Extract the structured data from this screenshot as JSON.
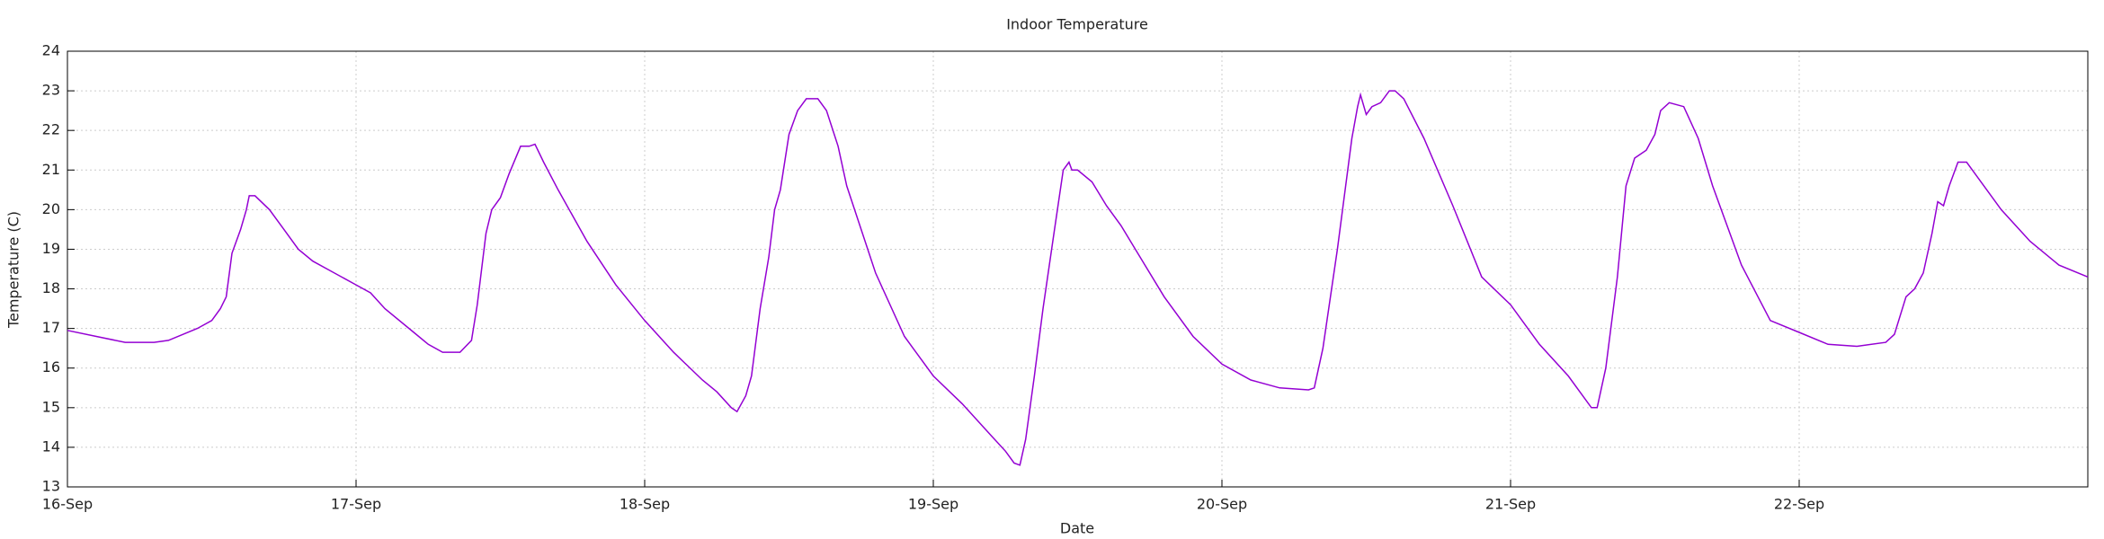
{
  "chart_data": {
    "type": "line",
    "title": "Indoor Temperature",
    "x_label": "Date",
    "y_label": "Temperature (C)",
    "x": [
      0,
      0.1,
      0.2,
      0.3,
      0.35,
      0.45,
      0.5,
      0.53,
      0.55,
      0.57,
      0.6,
      0.62,
      0.63,
      0.65,
      0.7,
      0.75,
      0.8,
      0.85,
      0.9,
      1,
      1.05,
      1.1,
      1.2,
      1.25,
      1.3,
      1.36,
      1.4,
      1.42,
      1.45,
      1.47,
      1.5,
      1.53,
      1.57,
      1.6,
      1.62,
      1.65,
      1.7,
      1.8,
      1.9,
      2,
      2.1,
      2.2,
      2.25,
      2.3,
      2.32,
      2.35,
      2.37,
      2.4,
      2.43,
      2.45,
      2.47,
      2.5,
      2.53,
      2.56,
      2.6,
      2.63,
      2.67,
      2.7,
      2.8,
      2.9,
      3,
      3.1,
      3.2,
      3.25,
      3.28,
      3.3,
      3.32,
      3.35,
      3.38,
      3.42,
      3.45,
      3.47,
      3.48,
      3.5,
      3.55,
      3.6,
      3.65,
      3.7,
      3.8,
      3.9,
      4,
      4.1,
      4.2,
      4.3,
      4.32,
      4.35,
      4.4,
      4.45,
      4.47,
      4.48,
      4.5,
      4.52,
      4.55,
      4.58,
      4.6,
      4.63,
      4.7,
      4.8,
      4.9,
      5,
      5.1,
      5.2,
      5.28,
      5.3,
      5.33,
      5.37,
      5.4,
      5.43,
      5.47,
      5.5,
      5.52,
      5.55,
      5.6,
      5.65,
      5.7,
      5.8,
      5.9,
      6,
      6.1,
      6.2,
      6.3,
      6.33,
      6.37,
      6.4,
      6.43,
      6.46,
      6.48,
      6.5,
      6.52,
      6.55,
      6.58,
      6.6,
      6.7,
      6.8,
      6.9,
      7
    ],
    "series": [
      {
        "name": "Indoor Temperature",
        "color": "#9400d3",
        "values": [
          16.95,
          16.8,
          16.65,
          16.65,
          16.7,
          17,
          17.2,
          17.5,
          17.8,
          18.9,
          19.5,
          20,
          20.35,
          20.35,
          20,
          19.5,
          19,
          18.7,
          18.5,
          18.1,
          17.9,
          17.5,
          16.9,
          16.6,
          16.4,
          16.4,
          16.7,
          17.6,
          19.4,
          20,
          20.3,
          20.9,
          21.6,
          21.6,
          21.65,
          21.2,
          20.5,
          19.2,
          18.1,
          17.2,
          16.4,
          15.7,
          15.4,
          15,
          14.9,
          15.3,
          15.8,
          17.5,
          18.8,
          20,
          20.5,
          21.9,
          22.5,
          22.8,
          22.8,
          22.5,
          21.6,
          20.6,
          18.4,
          16.8,
          15.8,
          15.1,
          14.3,
          13.9,
          13.6,
          13.55,
          14.2,
          15.8,
          17.5,
          19.5,
          21,
          21.2,
          21,
          21,
          20.7,
          20.1,
          19.6,
          19,
          17.8,
          16.8,
          16.1,
          15.7,
          15.5,
          15.45,
          15.5,
          16.5,
          19,
          21.8,
          22.6,
          22.9,
          22.4,
          22.6,
          22.7,
          23,
          23,
          22.8,
          21.8,
          20.1,
          18.3,
          17.6,
          16.6,
          15.8,
          15,
          15,
          16,
          18.3,
          20.6,
          21.3,
          21.5,
          21.9,
          22.5,
          22.7,
          22.6,
          21.8,
          20.6,
          18.6,
          17.2,
          16.9,
          16.6,
          16.55,
          16.65,
          16.85,
          17.8,
          18,
          18.4,
          19.4,
          20.2,
          20.1,
          20.6,
          21.2,
          21.2,
          21,
          20,
          19.2,
          18.6,
          18.3
        ]
      }
    ],
    "xlim": [
      0,
      7
    ],
    "xticks": [
      {
        "value": 0,
        "label": "16-Sep"
      },
      {
        "value": 1,
        "label": "17-Sep"
      },
      {
        "value": 2,
        "label": "18-Sep"
      },
      {
        "value": 3,
        "label": "19-Sep"
      },
      {
        "value": 4,
        "label": "20-Sep"
      },
      {
        "value": 5,
        "label": "21-Sep"
      },
      {
        "value": 6,
        "label": "22-Sep"
      }
    ],
    "ylim": [
      13,
      24
    ],
    "yticks": [
      13,
      14,
      15,
      16,
      17,
      18,
      19,
      20,
      21,
      22,
      23,
      24
    ],
    "grid": true
  }
}
